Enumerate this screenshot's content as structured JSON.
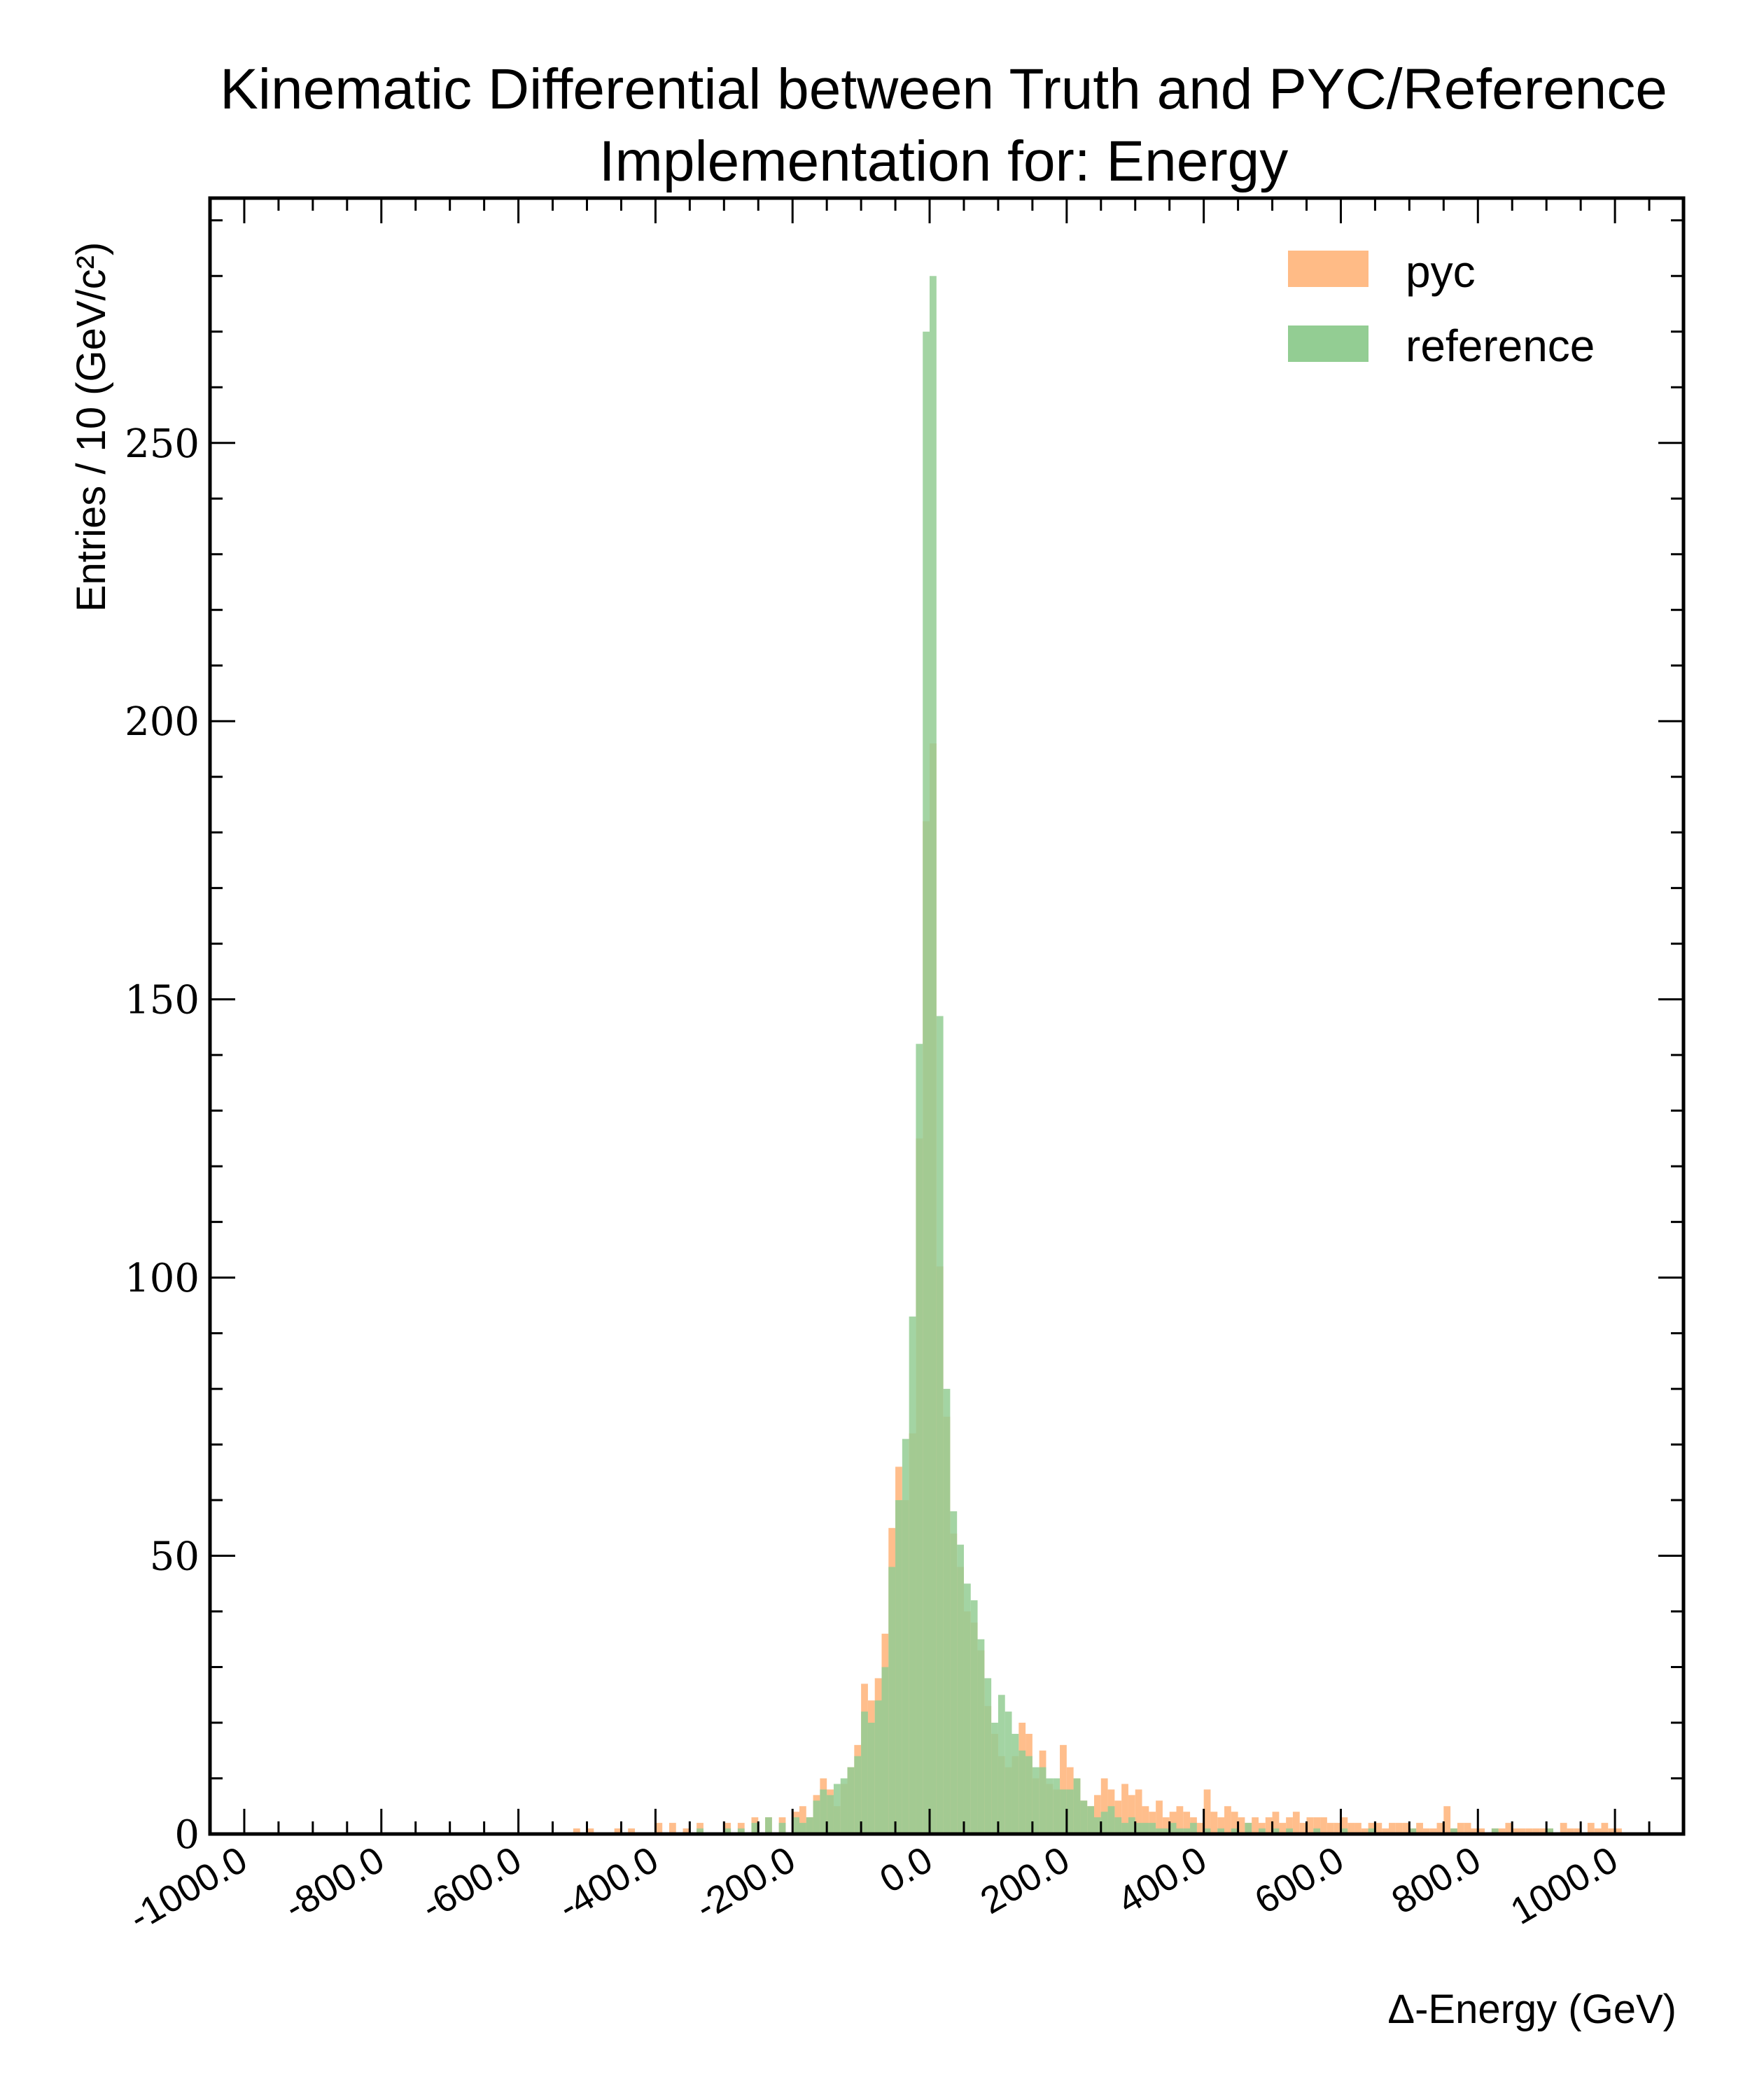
{
  "chart_data": {
    "type": "bar",
    "title_line1": "Kinematic Differential between Truth and PYC/Reference",
    "title_line2": "Implementation for: Energy",
    "xlabel": "Δ-Energy (GeV)",
    "ylabel": "Entries / 10 (GeV/c²)",
    "xlim": [
      -1050,
      1100
    ],
    "ylim": [
      0,
      294
    ],
    "bin_width": 10,
    "x_ticks": [
      -1000,
      -800,
      -600,
      -400,
      -200,
      0,
      200,
      400,
      600,
      800,
      1000
    ],
    "x_tick_labels": [
      "-1000.0",
      "-800.0",
      "-600.0",
      "-400.0",
      "-200.0",
      "0.0",
      "200.0",
      "400.0",
      "600.0",
      "800.0",
      "1000.0"
    ],
    "y_ticks": [
      0,
      50,
      100,
      150,
      200,
      250
    ],
    "y_tick_labels": [
      "0",
      "50",
      "100",
      "150",
      "200",
      "250"
    ],
    "grid": false,
    "legend_position": "top-right",
    "series": [
      {
        "name": "pyc",
        "color": "#ffbb86",
        "opacity": 0.95,
        "points": [
          [
            -520,
            1
          ],
          [
            -500,
            1
          ],
          [
            -460,
            1
          ],
          [
            -440,
            1
          ],
          [
            -400,
            2
          ],
          [
            -380,
            2
          ],
          [
            -360,
            1
          ],
          [
            -340,
            2
          ],
          [
            -300,
            2
          ],
          [
            -280,
            2
          ],
          [
            -260,
            3
          ],
          [
            -240,
            3
          ],
          [
            -220,
            3
          ],
          [
            -200,
            4
          ],
          [
            -190,
            5
          ],
          [
            -180,
            3
          ],
          [
            -170,
            7
          ],
          [
            -160,
            10
          ],
          [
            -150,
            8
          ],
          [
            -140,
            5
          ],
          [
            -130,
            9
          ],
          [
            -120,
            12
          ],
          [
            -110,
            16
          ],
          [
            -100,
            27
          ],
          [
            -90,
            24
          ],
          [
            -80,
            28
          ],
          [
            -70,
            36
          ],
          [
            -60,
            55
          ],
          [
            -50,
            66
          ],
          [
            -40,
            60
          ],
          [
            -30,
            72
          ],
          [
            -20,
            125
          ],
          [
            -10,
            182
          ],
          [
            0,
            196
          ],
          [
            10,
            102
          ],
          [
            20,
            75
          ],
          [
            30,
            54
          ],
          [
            40,
            48
          ],
          [
            50,
            40
          ],
          [
            60,
            38
          ],
          [
            70,
            33
          ],
          [
            80,
            23
          ],
          [
            90,
            18
          ],
          [
            100,
            14
          ],
          [
            110,
            12
          ],
          [
            120,
            14
          ],
          [
            130,
            20
          ],
          [
            140,
            18
          ],
          [
            150,
            10
          ],
          [
            160,
            15
          ],
          [
            170,
            9
          ],
          [
            180,
            8
          ],
          [
            190,
            16
          ],
          [
            200,
            12
          ],
          [
            210,
            10
          ],
          [
            220,
            6
          ],
          [
            230,
            5
          ],
          [
            240,
            7
          ],
          [
            250,
            10
          ],
          [
            260,
            8
          ],
          [
            270,
            6
          ],
          [
            280,
            9
          ],
          [
            290,
            7
          ],
          [
            300,
            8
          ],
          [
            310,
            5
          ],
          [
            320,
            4
          ],
          [
            330,
            6
          ],
          [
            340,
            3
          ],
          [
            350,
            4
          ],
          [
            360,
            5
          ],
          [
            370,
            4
          ],
          [
            380,
            3
          ],
          [
            390,
            2
          ],
          [
            400,
            8
          ],
          [
            410,
            4
          ],
          [
            420,
            3
          ],
          [
            430,
            5
          ],
          [
            440,
            4
          ],
          [
            450,
            3
          ],
          [
            460,
            2
          ],
          [
            470,
            3
          ],
          [
            480,
            2
          ],
          [
            490,
            3
          ],
          [
            500,
            4
          ],
          [
            510,
            2
          ],
          [
            520,
            3
          ],
          [
            530,
            4
          ],
          [
            540,
            2
          ],
          [
            550,
            3
          ],
          [
            560,
            3
          ],
          [
            570,
            3
          ],
          [
            580,
            2
          ],
          [
            590,
            2
          ],
          [
            600,
            3
          ],
          [
            610,
            2
          ],
          [
            620,
            2
          ],
          [
            630,
            1
          ],
          [
            640,
            2
          ],
          [
            650,
            2
          ],
          [
            660,
            1
          ],
          [
            670,
            2
          ],
          [
            680,
            2
          ],
          [
            690,
            2
          ],
          [
            700,
            1
          ],
          [
            710,
            2
          ],
          [
            720,
            1
          ],
          [
            730,
            1
          ],
          [
            740,
            2
          ],
          [
            750,
            5
          ],
          [
            760,
            1
          ],
          [
            770,
            2
          ],
          [
            780,
            2
          ],
          [
            790,
            1
          ],
          [
            800,
            1
          ],
          [
            820,
            1
          ],
          [
            830,
            1
          ],
          [
            840,
            2
          ],
          [
            850,
            1
          ],
          [
            860,
            1
          ],
          [
            870,
            1
          ],
          [
            880,
            1
          ],
          [
            890,
            1
          ],
          [
            900,
            1
          ],
          [
            920,
            2
          ],
          [
            930,
            1
          ],
          [
            940,
            1
          ],
          [
            960,
            2
          ],
          [
            970,
            1
          ],
          [
            980,
            2
          ],
          [
            990,
            1
          ],
          [
            1000,
            1
          ]
        ]
      },
      {
        "name": "reference",
        "color": "#93cd93",
        "opacity": 0.85,
        "points": [
          [
            -340,
            1
          ],
          [
            -300,
            1
          ],
          [
            -280,
            1
          ],
          [
            -260,
            2
          ],
          [
            -240,
            3
          ],
          [
            -220,
            2
          ],
          [
            -200,
            3
          ],
          [
            -190,
            2
          ],
          [
            -180,
            3
          ],
          [
            -170,
            6
          ],
          [
            -160,
            8
          ],
          [
            -150,
            7
          ],
          [
            -140,
            9
          ],
          [
            -130,
            10
          ],
          [
            -120,
            12
          ],
          [
            -110,
            14
          ],
          [
            -100,
            22
          ],
          [
            -90,
            20
          ],
          [
            -80,
            24
          ],
          [
            -70,
            30
          ],
          [
            -60,
            48
          ],
          [
            -50,
            60
          ],
          [
            -40,
            71
          ],
          [
            -30,
            93
          ],
          [
            -20,
            142
          ],
          [
            -10,
            270
          ],
          [
            0,
            280
          ],
          [
            10,
            147
          ],
          [
            20,
            80
          ],
          [
            30,
            58
          ],
          [
            40,
            52
          ],
          [
            50,
            45
          ],
          [
            60,
            42
          ],
          [
            70,
            35
          ],
          [
            80,
            28
          ],
          [
            90,
            20
          ],
          [
            100,
            25
          ],
          [
            110,
            22
          ],
          [
            120,
            18
          ],
          [
            130,
            15
          ],
          [
            140,
            14
          ],
          [
            150,
            12
          ],
          [
            160,
            12
          ],
          [
            170,
            10
          ],
          [
            180,
            10
          ],
          [
            190,
            8
          ],
          [
            200,
            8
          ],
          [
            210,
            10
          ],
          [
            220,
            6
          ],
          [
            230,
            5
          ],
          [
            240,
            3
          ],
          [
            250,
            4
          ],
          [
            260,
            5
          ],
          [
            270,
            3
          ],
          [
            280,
            2
          ],
          [
            290,
            3
          ],
          [
            300,
            2
          ],
          [
            310,
            2
          ],
          [
            320,
            2
          ],
          [
            330,
            1
          ],
          [
            340,
            1
          ],
          [
            350,
            2
          ],
          [
            360,
            1
          ],
          [
            370,
            1
          ],
          [
            380,
            2
          ],
          [
            400,
            1
          ],
          [
            420,
            1
          ],
          [
            440,
            1
          ],
          [
            460,
            2
          ],
          [
            480,
            1
          ],
          [
            500,
            1
          ],
          [
            520,
            1
          ],
          [
            560,
            1
          ],
          [
            600,
            1
          ],
          [
            640,
            1
          ],
          [
            700,
            1
          ],
          [
            760,
            1
          ],
          [
            820,
            1
          ],
          [
            900,
            1
          ]
        ]
      }
    ]
  }
}
